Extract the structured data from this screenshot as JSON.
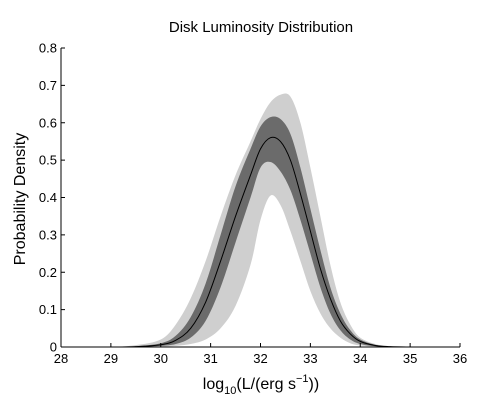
{
  "chart_data": {
    "type": "area",
    "title": "Disk Luminosity Distribution",
    "xlabel_base": "log",
    "xlabel_sub": "10",
    "xlabel_mid": "(L/(erg s",
    "xlabel_sup": "−1",
    "xlabel_end": "))",
    "ylabel": "Probability Density",
    "xlim": [
      28,
      36
    ],
    "ylim": [
      0,
      0.8
    ],
    "xticks": [
      "28",
      "29",
      "30",
      "31",
      "32",
      "33",
      "34",
      "35",
      "36"
    ],
    "yticks": [
      "0",
      "0.1",
      "0.2",
      "0.3",
      "0.4",
      "0.5",
      "0.6",
      "0.7",
      "0.8"
    ],
    "x": [
      29.0,
      29.5,
      30.0,
      30.3,
      30.6,
      30.9,
      31.2,
      31.5,
      31.8,
      32.0,
      32.2,
      32.4,
      32.6,
      32.8,
      33.0,
      33.2,
      33.4,
      33.6,
      33.8,
      34.0,
      34.3,
      34.6,
      35.0
    ],
    "median": [
      0.0,
      0.001,
      0.006,
      0.018,
      0.05,
      0.12,
      0.23,
      0.35,
      0.46,
      0.53,
      0.56,
      0.55,
      0.5,
      0.41,
      0.31,
      0.21,
      0.13,
      0.07,
      0.035,
      0.015,
      0.004,
      0.001,
      0.0
    ],
    "inner_upper": [
      0.0,
      0.002,
      0.01,
      0.03,
      0.08,
      0.17,
      0.3,
      0.43,
      0.53,
      0.59,
      0.615,
      0.61,
      0.57,
      0.48,
      0.37,
      0.26,
      0.16,
      0.09,
      0.045,
      0.02,
      0.006,
      0.001,
      0.0
    ],
    "inner_lower": [
      0.0,
      0.0,
      0.003,
      0.008,
      0.025,
      0.07,
      0.16,
      0.28,
      0.4,
      0.48,
      0.495,
      0.47,
      0.42,
      0.34,
      0.25,
      0.16,
      0.09,
      0.045,
      0.02,
      0.008,
      0.002,
      0.0,
      0.0
    ],
    "outer_upper": [
      0.0,
      0.005,
      0.02,
      0.06,
      0.13,
      0.23,
      0.35,
      0.46,
      0.55,
      0.61,
      0.655,
      0.675,
      0.67,
      0.6,
      0.48,
      0.35,
      0.22,
      0.12,
      0.06,
      0.025,
      0.008,
      0.002,
      0.0
    ],
    "outer_lower": [
      0.0,
      0.0,
      0.001,
      0.003,
      0.008,
      0.02,
      0.05,
      0.11,
      0.22,
      0.34,
      0.405,
      0.38,
      0.31,
      0.23,
      0.15,
      0.09,
      0.05,
      0.025,
      0.01,
      0.004,
      0.001,
      0.0,
      0.0
    ],
    "colors": {
      "outer_band": "#cfcfcf",
      "inner_band": "#6b6b6b",
      "median_line": "#000000",
      "axes": "#000000"
    },
    "grid": false,
    "legend": "none"
  }
}
